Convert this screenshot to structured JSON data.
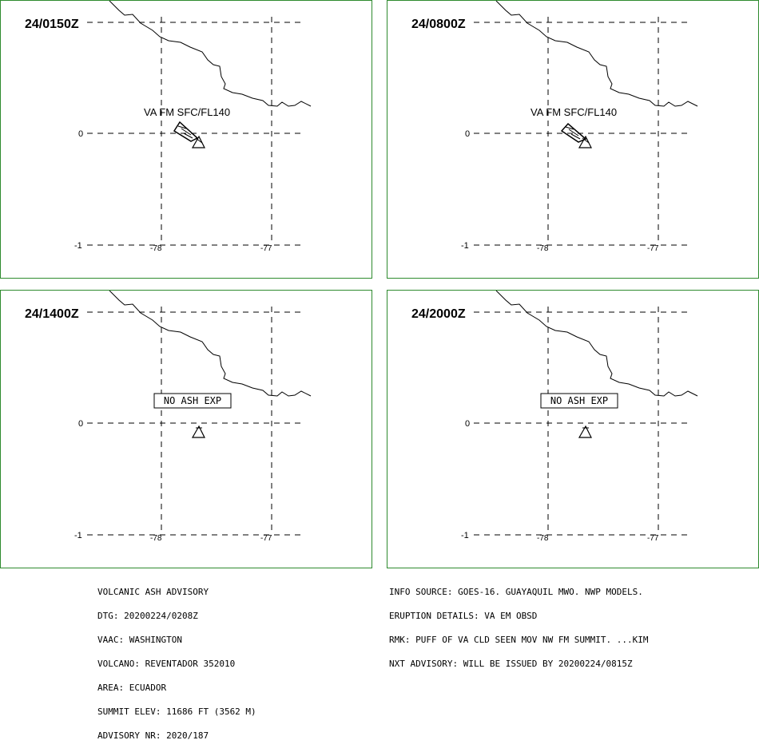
{
  "panels": [
    {
      "time": "24/0150Z",
      "label": "VA FM SFC/FL140",
      "label_type": "plain",
      "ash_polygon": true
    },
    {
      "time": "24/0800Z",
      "label": "VA FM SFC/FL140",
      "label_type": "plain",
      "ash_polygon": true
    },
    {
      "time": "24/1400Z",
      "label": "NO ASH EXP",
      "label_type": "boxed",
      "ash_polygon": false
    },
    {
      "time": "24/2000Z",
      "label": "NO ASH EXP",
      "label_type": "boxed",
      "ash_polygon": false
    }
  ],
  "grid_labels": {
    "lat_0": "0",
    "lat_m1": "-1",
    "lon_m78": "-78",
    "lon_m77": "-77"
  },
  "advisory_left": [
    "VOLCANIC ASH ADVISORY",
    "DTG: 20200224/0208Z",
    "VAAC: WASHINGTON",
    "VOLCANO: REVENTADOR 352010",
    "AREA: ECUADOR",
    "SUMMIT ELEV: 11686 FT (3562 M)",
    "ADVISORY NR: 2020/187"
  ],
  "advisory_right": [
    "INFO SOURCE: GOES-16. GUAYAQUIL MWO. NWP MODELS.",
    "ERUPTION DETAILS: VA EM OBSD",
    "RMK: PUFF OF VA CLD SEEN MOV NW FM SUMMIT. ...KIM",
    "NXT ADVISORY: WILL BE ISSUED BY 20200224/0815Z"
  ],
  "colors": {
    "panel_border": "#2e8b2e",
    "line": "#000000"
  },
  "icons": {
    "volcano": "volcano-triangle-icon"
  }
}
